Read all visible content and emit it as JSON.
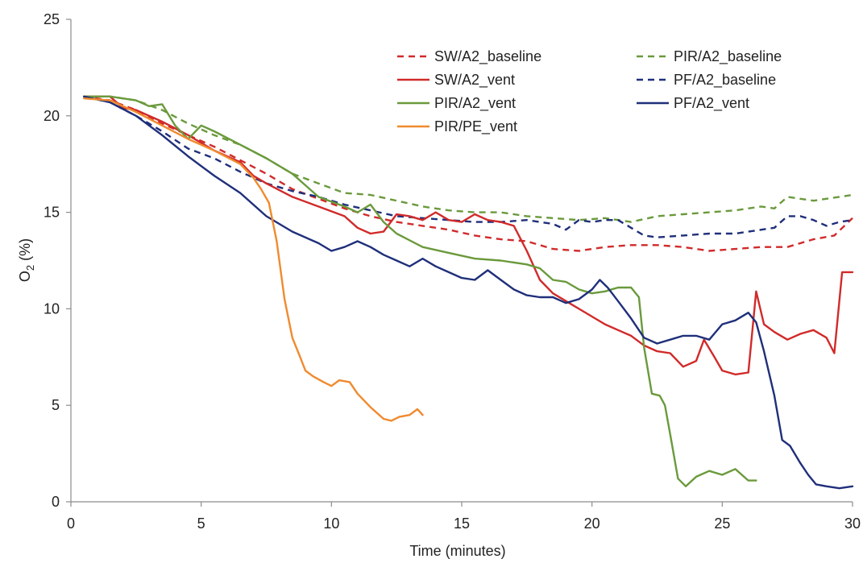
{
  "chart_data": {
    "type": "line",
    "title": "",
    "xlabel": "Time (minutes)",
    "ylabel": {
      "main": "O",
      "sub": "2",
      "tail": " (%)"
    },
    "xlim": [
      0,
      30
    ],
    "ylim": [
      0,
      25
    ],
    "xticks": [
      0,
      5,
      10,
      15,
      20,
      25,
      30
    ],
    "yticks": [
      0,
      5,
      10,
      15,
      20,
      25
    ],
    "grid": false,
    "legend_position": "top-right",
    "series": [
      {
        "name": "SW/A2_baseline",
        "color": "#d12a2a",
        "style": "dashed",
        "x": [
          0.5,
          1.5,
          2.5,
          3.5,
          4.5,
          5.5,
          6.5,
          7.5,
          8.5,
          9.5,
          10.5,
          11.5,
          12.5,
          13.5,
          14.5,
          15.5,
          16.5,
          17.5,
          18.5,
          19.5,
          20.5,
          21.5,
          22.5,
          23.5,
          24.5,
          25.5,
          26.5,
          27.5,
          28.5,
          29.3,
          30.0
        ],
        "y": [
          21.0,
          20.8,
          20.3,
          19.6,
          19.0,
          18.4,
          17.7,
          17.0,
          16.2,
          15.7,
          15.2,
          14.8,
          14.5,
          14.3,
          14.1,
          13.8,
          13.6,
          13.5,
          13.1,
          13.0,
          13.2,
          13.3,
          13.3,
          13.2,
          13.0,
          13.1,
          13.2,
          13.2,
          13.6,
          13.8,
          14.7
        ]
      },
      {
        "name": "SW/A2_vent",
        "color": "#d12a2a",
        "style": "solid",
        "x": [
          0.5,
          1.5,
          2.0,
          2.5,
          3.5,
          4.5,
          5.5,
          6.5,
          7.0,
          7.5,
          8.5,
          9.5,
          10.5,
          11.0,
          11.5,
          12.0,
          12.5,
          13.0,
          13.5,
          14.0,
          14.5,
          15.0,
          15.5,
          16.0,
          16.5,
          17.0,
          17.5,
          18.0,
          18.5,
          19.5,
          20.5,
          21.0,
          21.5,
          22.0,
          22.5,
          23.0,
          23.5,
          24.0,
          24.3,
          24.7,
          25.0,
          25.5,
          26.0,
          26.3,
          26.6,
          27.0,
          27.5,
          28.0,
          28.5,
          29.0,
          29.3,
          29.6,
          30.0
        ],
        "y": [
          21.0,
          21.0,
          20.4,
          20.3,
          19.7,
          19.0,
          18.2,
          17.6,
          16.9,
          16.5,
          15.8,
          15.3,
          14.8,
          14.2,
          13.9,
          14.0,
          14.9,
          14.8,
          14.6,
          15.0,
          14.6,
          14.5,
          14.9,
          14.6,
          14.5,
          14.3,
          13.0,
          11.5,
          10.8,
          10.0,
          9.2,
          8.9,
          8.6,
          8.1,
          7.8,
          7.7,
          7.0,
          7.3,
          8.4,
          7.5,
          6.8,
          6.6,
          6.7,
          10.9,
          9.2,
          8.8,
          8.4,
          8.7,
          8.9,
          8.5,
          7.7,
          11.9,
          11.9
        ]
      },
      {
        "name": "PIR/A2_baseline",
        "color": "#6a9a3c",
        "style": "dashed",
        "x": [
          0.5,
          1.5,
          2.5,
          3.5,
          4.5,
          5.5,
          6.5,
          7.5,
          8.5,
          9.5,
          10.5,
          11.5,
          12.5,
          13.5,
          14.5,
          15.5,
          16.5,
          17.5,
          18.5,
          19.5,
          20.5,
          21.5,
          22.5,
          23.5,
          24.5,
          25.5,
          26.5,
          27.0,
          27.5,
          28.5,
          29.5,
          30.0
        ],
        "y": [
          21.0,
          21.0,
          20.8,
          20.3,
          19.6,
          19.0,
          18.5,
          17.8,
          17.0,
          16.5,
          16.0,
          15.9,
          15.6,
          15.3,
          15.1,
          15.0,
          15.0,
          14.8,
          14.7,
          14.6,
          14.7,
          14.5,
          14.8,
          14.9,
          15.0,
          15.1,
          15.3,
          15.2,
          15.8,
          15.6,
          15.8,
          15.9
        ]
      },
      {
        "name": "PIR/A2_vent",
        "color": "#6a9a3c",
        "style": "solid",
        "x": [
          0.5,
          1.5,
          2.5,
          3.0,
          3.5,
          4.0,
          4.5,
          5.0,
          5.5,
          6.5,
          7.5,
          8.5,
          9.5,
          10.5,
          11.0,
          11.5,
          12.0,
          12.5,
          13.5,
          14.5,
          15.5,
          16.5,
          17.5,
          18.0,
          18.5,
          19.0,
          19.5,
          20.0,
          20.5,
          21.0,
          21.5,
          21.8,
          22.0,
          22.3,
          22.6,
          22.8,
          23.0,
          23.3,
          23.6,
          24.0,
          24.5,
          25.0,
          25.5,
          26.0,
          26.3
        ],
        "y": [
          21.0,
          21.0,
          20.8,
          20.5,
          20.6,
          19.5,
          18.8,
          19.5,
          19.2,
          18.5,
          17.8,
          17.0,
          15.8,
          15.3,
          15.0,
          15.4,
          14.5,
          13.9,
          13.2,
          12.9,
          12.6,
          12.5,
          12.3,
          12.1,
          11.5,
          11.4,
          11.0,
          10.8,
          10.9,
          11.1,
          11.1,
          10.6,
          8.0,
          5.6,
          5.5,
          5.0,
          3.5,
          1.2,
          0.8,
          1.3,
          1.6,
          1.4,
          1.7,
          1.1,
          1.1
        ]
      },
      {
        "name": "PF/A2_baseline",
        "color": "#1f2f7a",
        "style": "dashed",
        "x": [
          0.5,
          1.5,
          2.5,
          3.5,
          4.5,
          5.5,
          6.5,
          7.5,
          8.5,
          9.5,
          10.5,
          11.5,
          12.5,
          13.5,
          14.5,
          15.5,
          16.5,
          17.5,
          18.5,
          19.0,
          19.5,
          20.0,
          20.5,
          21.0,
          21.5,
          22.0,
          22.5,
          23.5,
          24.5,
          25.5,
          26.5,
          27.0,
          27.5,
          28.0,
          28.5,
          29.0,
          29.5,
          30.0
        ],
        "y": [
          21.0,
          20.7,
          20.0,
          19.2,
          18.3,
          17.8,
          17.1,
          16.5,
          16.1,
          15.8,
          15.4,
          15.1,
          14.8,
          14.7,
          14.6,
          14.5,
          14.5,
          14.6,
          14.4,
          14.1,
          14.6,
          14.5,
          14.6,
          14.6,
          14.2,
          13.8,
          13.7,
          13.8,
          13.9,
          13.9,
          14.1,
          14.2,
          14.8,
          14.8,
          14.6,
          14.3,
          14.5,
          14.6
        ]
      },
      {
        "name": "PF/A2_vent",
        "color": "#1f2f7a",
        "style": "solid",
        "x": [
          0.5,
          1.5,
          2.5,
          3.5,
          4.5,
          5.5,
          6.5,
          7.5,
          8.5,
          9.5,
          10.0,
          10.5,
          11.0,
          11.5,
          12.0,
          12.5,
          13.0,
          13.5,
          14.0,
          14.5,
          15.0,
          15.5,
          16.0,
          16.5,
          17.0,
          17.5,
          18.0,
          18.5,
          19.0,
          19.5,
          20.0,
          20.3,
          20.6,
          21.0,
          21.5,
          22.0,
          22.5,
          23.0,
          23.5,
          24.0,
          24.5,
          25.0,
          25.5,
          26.0,
          26.3,
          26.6,
          27.0,
          27.3,
          27.6,
          28.0,
          28.3,
          28.6,
          29.0,
          29.5,
          30.0
        ],
        "y": [
          21.0,
          20.7,
          20.0,
          19.0,
          17.9,
          16.9,
          16.0,
          14.8,
          14.0,
          13.4,
          13.0,
          13.2,
          13.5,
          13.2,
          12.8,
          12.5,
          12.2,
          12.6,
          12.2,
          11.9,
          11.6,
          11.5,
          12.0,
          11.5,
          11.0,
          10.7,
          10.6,
          10.6,
          10.3,
          10.5,
          11.0,
          11.5,
          11.1,
          10.4,
          9.5,
          8.5,
          8.2,
          8.4,
          8.6,
          8.6,
          8.4,
          9.2,
          9.4,
          9.8,
          9.3,
          7.8,
          5.5,
          3.2,
          2.9,
          2.0,
          1.4,
          0.9,
          0.8,
          0.7,
          0.8
        ]
      },
      {
        "name": "PIR/PE_vent",
        "color": "#f08a2e",
        "style": "solid",
        "x": [
          0.5,
          1.5,
          2.5,
          3.5,
          4.5,
          5.5,
          6.5,
          7.0,
          7.3,
          7.6,
          7.9,
          8.2,
          8.5,
          8.8,
          9.0,
          9.3,
          9.7,
          10.0,
          10.3,
          10.7,
          11.0,
          11.5,
          12.0,
          12.3,
          12.6,
          13.0,
          13.3,
          13.5
        ],
        "y": [
          20.9,
          20.8,
          20.2,
          19.5,
          18.8,
          18.2,
          17.5,
          16.8,
          16.2,
          15.5,
          13.5,
          10.5,
          8.5,
          7.5,
          6.8,
          6.5,
          6.2,
          6.0,
          6.3,
          6.2,
          5.6,
          4.9,
          4.3,
          4.2,
          4.4,
          4.5,
          4.8,
          4.5
        ]
      }
    ]
  },
  "legend": {
    "columns": [
      [
        "SW/A2_baseline",
        "SW/A2_vent",
        "PIR/A2_vent",
        "PIR/PE_vent"
      ],
      [
        "PIR/A2_baseline",
        "PF/A2_baseline",
        "PF/A2_vent"
      ]
    ]
  }
}
